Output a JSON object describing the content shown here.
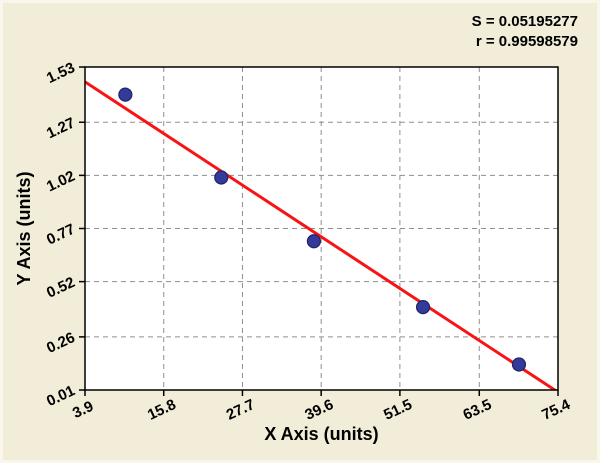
{
  "annotation": {
    "s_label": "S = 0.05195277",
    "r_label": "r = 0.99598579"
  },
  "chart_data": {
    "type": "scatter",
    "title": "",
    "xlabel": "X Axis (units)",
    "ylabel": "Y Axis (units)",
    "xlim": [
      3.9,
      75.4
    ],
    "ylim": [
      0.01,
      1.53
    ],
    "x_tick_labels": [
      "3.9",
      "15.8",
      "27.7",
      "39.6",
      "51.5",
      "63.5",
      "75.4"
    ],
    "y_tick_labels": [
      "0.01",
      "0.26",
      "0.52",
      "0.77",
      "1.02",
      "1.27",
      "1.53"
    ],
    "grid": "dashed",
    "legend": "none",
    "points": [
      {
        "x": 10.0,
        "y": 1.4
      },
      {
        "x": 24.5,
        "y": 1.01
      },
      {
        "x": 38.5,
        "y": 0.71
      },
      {
        "x": 55.0,
        "y": 0.4
      },
      {
        "x": 69.5,
        "y": 0.13
      }
    ],
    "fit_line": {
      "x1": 3.9,
      "y1": 1.46,
      "x2": 75.4,
      "y2": 0.0
    },
    "colors": {
      "background": "#f1edd8",
      "plot_background": "#ffffff",
      "point_fill": "#333a99",
      "point_stroke": "#1d2566",
      "line": "#f81414",
      "grid": "#8f8f8f",
      "frame": "#000000",
      "text": "#000000"
    }
  }
}
